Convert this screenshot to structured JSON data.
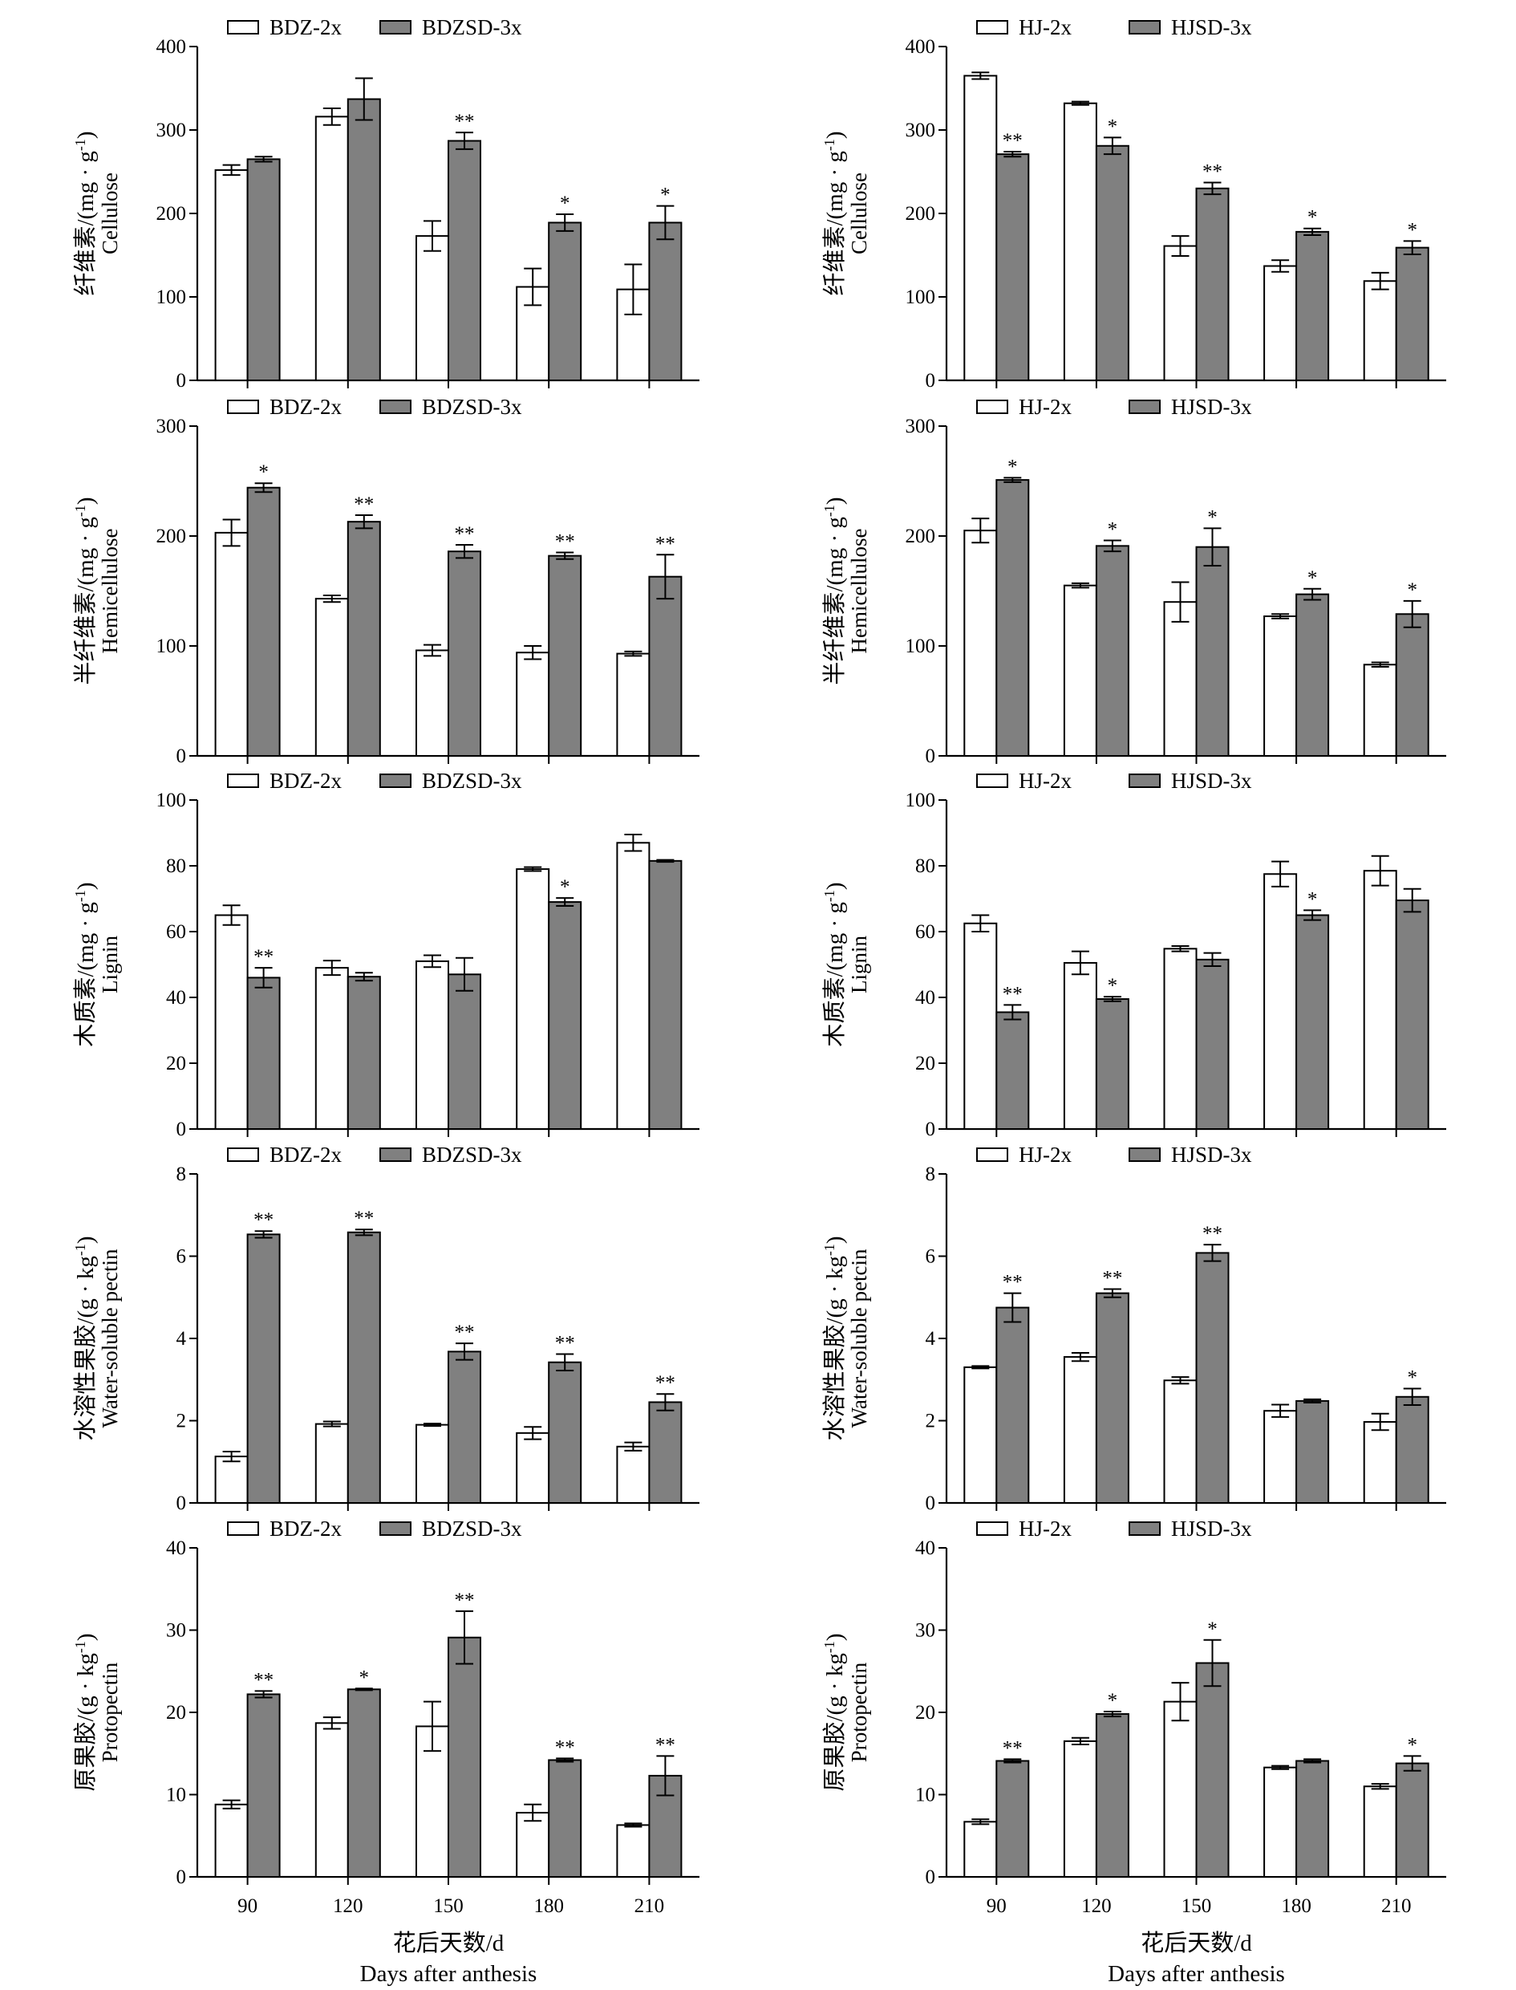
{
  "x_axis": {
    "categories": [
      "90",
      "120",
      "150",
      "180",
      "210"
    ],
    "title_cn": "花后天数/d",
    "title_en": "Days after anthesis"
  },
  "chart_data": [
    {
      "type": "bar",
      "legend": [
        "BDZ-2x",
        "BDZSD-3x"
      ],
      "ylabel_cn": "纤维素/(mg · g-1)",
      "ylabel_en": "Cellulose",
      "ylim": [
        0,
        400
      ],
      "yticks": [
        "0",
        "100",
        "200",
        "300",
        "400"
      ],
      "categories": [
        "90",
        "120",
        "150",
        "180",
        "210"
      ],
      "series": [
        {
          "name": "BDZ-2x",
          "values": [
            252,
            316,
            173,
            112,
            109
          ],
          "errors": [
            6,
            10,
            18,
            22,
            30
          ]
        },
        {
          "name": "BDZSD-3x",
          "values": [
            265,
            337,
            287,
            189,
            189
          ],
          "errors": [
            3,
            25,
            10,
            10,
            20
          ]
        }
      ],
      "significance": [
        "",
        "",
        "**",
        "*",
        "*"
      ]
    },
    {
      "type": "bar",
      "legend": [
        "HJ-2x",
        "HJSD-3x"
      ],
      "ylabel_cn": "纤维素/(mg · g-1)",
      "ylabel_en": "Cellulose",
      "ylim": [
        0,
        400
      ],
      "yticks": [
        "0",
        "100",
        "200",
        "300",
        "400"
      ],
      "categories": [
        "90",
        "120",
        "150",
        "180",
        "210"
      ],
      "series": [
        {
          "name": "HJ-2x",
          "values": [
            365,
            332,
            161,
            137,
            119
          ],
          "errors": [
            4,
            2,
            12,
            7,
            10
          ]
        },
        {
          "name": "HJSD-3x",
          "values": [
            271,
            281,
            230,
            178,
            159
          ],
          "errors": [
            3,
            10,
            7,
            4,
            8
          ]
        }
      ],
      "significance": [
        "**",
        "*",
        "**",
        "*",
        "*"
      ]
    },
    {
      "type": "bar",
      "legend": [
        "BDZ-2x",
        "BDZSD-3x"
      ],
      "ylabel_cn": "半纤维素/(mg · g-1)",
      "ylabel_en": "Hemicellulose",
      "ylim": [
        0,
        300
      ],
      "yticks": [
        "0",
        "100",
        "200",
        "300"
      ],
      "categories": [
        "90",
        "120",
        "150",
        "180",
        "210"
      ],
      "series": [
        {
          "name": "BDZ-2x",
          "values": [
            203,
            143,
            96,
            94,
            93
          ],
          "errors": [
            12,
            3,
            5,
            6,
            2
          ]
        },
        {
          "name": "BDZSD-3x",
          "values": [
            244,
            213,
            186,
            182,
            163
          ],
          "errors": [
            4,
            6,
            6,
            3,
            20
          ]
        }
      ],
      "significance": [
        "*",
        "**",
        "**",
        "**",
        "**"
      ]
    },
    {
      "type": "bar",
      "legend": [
        "HJ-2x",
        "HJSD-3x"
      ],
      "ylabel_cn": "半纤维素/(mg · g-1)",
      "ylabel_en": "Hemicellulose",
      "ylim": [
        0,
        300
      ],
      "yticks": [
        "0",
        "100",
        "200",
        "300"
      ],
      "categories": [
        "90",
        "120",
        "150",
        "180",
        "210"
      ],
      "series": [
        {
          "name": "HJ-2x",
          "values": [
            205,
            155,
            140,
            127,
            83
          ],
          "errors": [
            11,
            2,
            18,
            2,
            2
          ]
        },
        {
          "name": "HJSD-3x",
          "values": [
            251,
            191,
            190,
            147,
            129
          ],
          "errors": [
            2,
            5,
            17,
            5,
            12
          ]
        }
      ],
      "significance": [
        "*",
        "*",
        "*",
        "*",
        "*"
      ]
    },
    {
      "type": "bar",
      "legend": [
        "BDZ-2x",
        "BDZSD-3x"
      ],
      "ylabel_cn": "木质素/(mg · g-1)",
      "ylabel_en": "Lignin",
      "ylim": [
        0,
        100
      ],
      "yticks": [
        "0",
        "20",
        "40",
        "60",
        "80",
        "100"
      ],
      "categories": [
        "90",
        "120",
        "150",
        "180",
        "210"
      ],
      "series": [
        {
          "name": "BDZ-2x",
          "values": [
            65,
            49,
            51,
            79,
            87
          ],
          "errors": [
            3,
            2.2,
            1.8,
            0.6,
            2.5
          ]
        },
        {
          "name": "BDZSD-3x",
          "values": [
            46,
            46.3,
            47,
            69,
            81.5
          ],
          "errors": [
            3,
            1.2,
            5,
            1.2,
            0.3
          ]
        }
      ],
      "significance": [
        "**",
        "",
        "",
        "*",
        ""
      ]
    },
    {
      "type": "bar",
      "legend": [
        "HJ-2x",
        "HJSD-3x"
      ],
      "ylabel_cn": "木质素/(mg · g-1)",
      "ylabel_en": "Lignin",
      "ylim": [
        0,
        100
      ],
      "yticks": [
        "0",
        "20",
        "40",
        "60",
        "80",
        "100"
      ],
      "categories": [
        "90",
        "120",
        "150",
        "180",
        "210"
      ],
      "series": [
        {
          "name": "HJ-2x",
          "values": [
            62.5,
            50.5,
            54.8,
            77.5,
            78.5
          ],
          "errors": [
            2.5,
            3.5,
            0.8,
            3.8,
            4.5
          ]
        },
        {
          "name": "HJSD-3x",
          "values": [
            35.5,
            39.5,
            51.5,
            65,
            69.5
          ],
          "errors": [
            2.2,
            0.7,
            2,
            1.5,
            3.5
          ]
        }
      ],
      "significance": [
        "**",
        "*",
        "",
        "*",
        ""
      ]
    },
    {
      "type": "bar",
      "legend": [
        "BDZ-2x",
        "BDZSD-3x"
      ],
      "ylabel_cn": "水溶性果胶/(g · kg-1)",
      "ylabel_en": "Water-soluble pectin",
      "ylim": [
        0,
        8
      ],
      "yticks": [
        "0",
        "2",
        "4",
        "6",
        "8"
      ],
      "categories": [
        "90",
        "120",
        "150",
        "180",
        "210"
      ],
      "series": [
        {
          "name": "BDZ-2x",
          "values": [
            1.13,
            1.92,
            1.9,
            1.7,
            1.37
          ],
          "errors": [
            0.12,
            0.06,
            0.03,
            0.15,
            0.1
          ]
        },
        {
          "name": "BDZSD-3x",
          "values": [
            6.53,
            6.58,
            3.68,
            3.42,
            2.45
          ],
          "errors": [
            0.08,
            0.07,
            0.2,
            0.2,
            0.2
          ]
        }
      ],
      "significance": [
        "**",
        "**",
        "**",
        "**",
        "**"
      ]
    },
    {
      "type": "bar",
      "legend": [
        "HJ-2x",
        "HJSD-3x"
      ],
      "ylabel_cn": "水溶性果胶/(g · kg-1)",
      "ylabel_en": "Water-soluble petcin",
      "ylim": [
        0,
        8
      ],
      "yticks": [
        "0",
        "2",
        "4",
        "6",
        "8"
      ],
      "categories": [
        "90",
        "120",
        "150",
        "180",
        "210"
      ],
      "series": [
        {
          "name": "HJ-2x",
          "values": [
            3.3,
            3.55,
            2.98,
            2.24,
            1.97
          ],
          "errors": [
            0.03,
            0.1,
            0.08,
            0.15,
            0.2
          ]
        },
        {
          "name": "HJSD-3x",
          "values": [
            4.75,
            5.1,
            6.08,
            2.48,
            2.58
          ],
          "errors": [
            0.35,
            0.1,
            0.2,
            0.04,
            0.2
          ]
        }
      ],
      "significance": [
        "**",
        "**",
        "**",
        "",
        "*"
      ]
    },
    {
      "type": "bar",
      "legend": [
        "BDZ-2x",
        "BDZSD-3x"
      ],
      "ylabel_cn": "原果胶/(g · kg-1)",
      "ylabel_en": "Protopectin",
      "ylim": [
        0,
        40
      ],
      "yticks": [
        "0",
        "10",
        "20",
        "30",
        "40"
      ],
      "categories": [
        "90",
        "120",
        "150",
        "180",
        "210"
      ],
      "series": [
        {
          "name": "BDZ-2x",
          "values": [
            8.8,
            18.7,
            18.3,
            7.8,
            6.3
          ],
          "errors": [
            0.5,
            0.7,
            3,
            1,
            0.2
          ]
        },
        {
          "name": "BDZSD-3x",
          "values": [
            22.2,
            22.8,
            29.1,
            14.2,
            12.3
          ],
          "errors": [
            0.4,
            0.1,
            3.2,
            0.2,
            2.4
          ]
        }
      ],
      "significance": [
        "**",
        "*",
        "**",
        "**",
        "**"
      ]
    },
    {
      "type": "bar",
      "legend": [
        "HJ-2x",
        "HJSD-3x"
      ],
      "ylabel_cn": "原果胶/(g · kg-1)",
      "ylabel_en": "Protopectin",
      "ylim": [
        0,
        40
      ],
      "yticks": [
        "0",
        "10",
        "20",
        "30",
        "40"
      ],
      "categories": [
        "90",
        "120",
        "150",
        "180",
        "210"
      ],
      "series": [
        {
          "name": "HJ-2x",
          "values": [
            6.7,
            16.5,
            21.3,
            13.3,
            11
          ],
          "errors": [
            0.3,
            0.4,
            2.3,
            0.2,
            0.3
          ]
        },
        {
          "name": "HJSD-3x",
          "values": [
            14.1,
            19.8,
            26,
            14.1,
            13.8
          ],
          "errors": [
            0.2,
            0.3,
            2.8,
            0.2,
            0.9
          ]
        }
      ],
      "significance": [
        "**",
        "*",
        "*",
        "",
        "*"
      ]
    }
  ]
}
